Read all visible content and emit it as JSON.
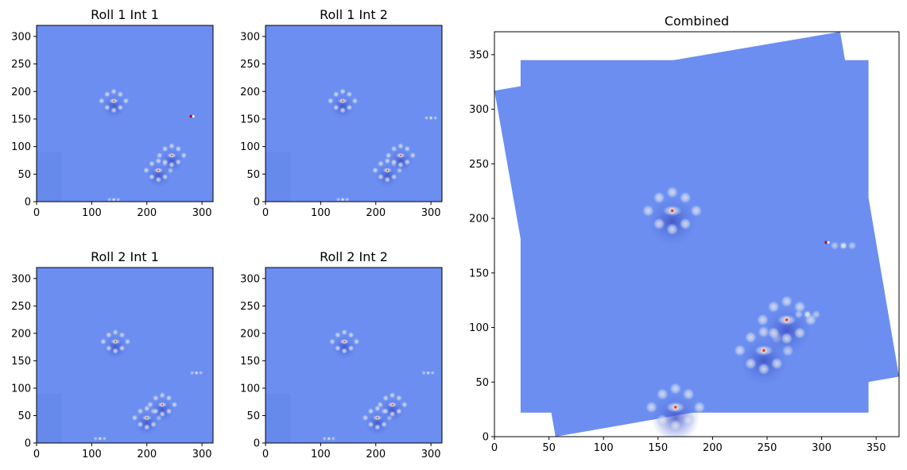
{
  "chart_data": [
    {
      "type": "heatmap",
      "title": "Roll 1 Int 1",
      "xlim": [
        0,
        320
      ],
      "ylim": [
        0,
        320
      ],
      "xticks": [
        0,
        100,
        200,
        300
      ],
      "yticks": [
        0,
        50,
        100,
        150,
        200,
        250,
        300
      ],
      "colormap": "coolwarm",
      "background_color": "#6b8ef0",
      "sources": [
        {
          "x": 140,
          "y": 183,
          "kind": "peak"
        },
        {
          "x": 221,
          "y": 57,
          "kind": "peak"
        },
        {
          "x": 245,
          "y": 84,
          "kind": "peak"
        },
        {
          "x": 140,
          "y": 4,
          "kind": "faint"
        },
        {
          "x": 280,
          "y": 155,
          "kind": "hot-pixel"
        }
      ]
    },
    {
      "type": "heatmap",
      "title": "Roll 1 Int 2",
      "xlim": [
        0,
        320
      ],
      "ylim": [
        0,
        320
      ],
      "xticks": [
        0,
        100,
        200,
        300
      ],
      "yticks": [
        0,
        50,
        100,
        150,
        200,
        250,
        300
      ],
      "colormap": "coolwarm",
      "background_color": "#6b8ef0",
      "sources": [
        {
          "x": 140,
          "y": 183,
          "kind": "peak"
        },
        {
          "x": 221,
          "y": 57,
          "kind": "peak"
        },
        {
          "x": 245,
          "y": 84,
          "kind": "peak"
        },
        {
          "x": 140,
          "y": 4,
          "kind": "faint"
        },
        {
          "x": 300,
          "y": 152,
          "kind": "faint"
        }
      ]
    },
    {
      "type": "heatmap",
      "title": "Roll 2 Int 1",
      "xlim": [
        0,
        320
      ],
      "ylim": [
        0,
        320
      ],
      "xticks": [
        0,
        100,
        200,
        300
      ],
      "yticks": [
        0,
        50,
        100,
        150,
        200,
        250,
        300
      ],
      "colormap": "coolwarm",
      "background_color": "#6b8ef0",
      "sources": [
        {
          "x": 143,
          "y": 185,
          "kind": "peak"
        },
        {
          "x": 200,
          "y": 46,
          "kind": "peak"
        },
        {
          "x": 228,
          "y": 70,
          "kind": "peak"
        },
        {
          "x": 115,
          "y": 8,
          "kind": "faint"
        },
        {
          "x": 290,
          "y": 128,
          "kind": "faint"
        }
      ]
    },
    {
      "type": "heatmap",
      "title": "Roll 2 Int 2",
      "xlim": [
        0,
        320
      ],
      "ylim": [
        0,
        320
      ],
      "xticks": [
        0,
        100,
        200,
        300
      ],
      "yticks": [
        0,
        50,
        100,
        150,
        200,
        250,
        300
      ],
      "colormap": "coolwarm",
      "background_color": "#6b8ef0",
      "sources": [
        {
          "x": 143,
          "y": 185,
          "kind": "peak"
        },
        {
          "x": 203,
          "y": 46,
          "kind": "peak"
        },
        {
          "x": 230,
          "y": 70,
          "kind": "peak"
        },
        {
          "x": 115,
          "y": 8,
          "kind": "faint"
        },
        {
          "x": 295,
          "y": 128,
          "kind": "faint"
        }
      ]
    },
    {
      "type": "heatmap",
      "title": "Combined",
      "xlim": [
        0,
        371
      ],
      "ylim": [
        0,
        371
      ],
      "xticks": [
        0,
        50,
        100,
        150,
        200,
        250,
        300,
        350
      ],
      "yticks": [
        0,
        50,
        100,
        150,
        200,
        250,
        300,
        350
      ],
      "colormap": "coolwarm",
      "background_color": "#6b8ef0",
      "footprints": [
        [
          [
            24,
            22
          ],
          [
            343,
            22
          ],
          [
            343,
            345
          ],
          [
            24,
            345
          ]
        ],
        [
          [
            56,
            0
          ],
          [
            371,
            55
          ],
          [
            317,
            371
          ],
          [
            0,
            317
          ]
        ]
      ],
      "sources": [
        {
          "x": 163,
          "y": 207,
          "kind": "peak"
        },
        {
          "x": 247,
          "y": 79,
          "kind": "peak"
        },
        {
          "x": 268,
          "y": 107,
          "kind": "peak"
        },
        {
          "x": 287,
          "y": 112,
          "kind": "faint"
        },
        {
          "x": 166,
          "y": 27,
          "kind": "peak"
        },
        {
          "x": 304,
          "y": 178,
          "kind": "hot-pixel"
        },
        {
          "x": 320,
          "y": 175,
          "kind": "faint"
        }
      ]
    }
  ]
}
